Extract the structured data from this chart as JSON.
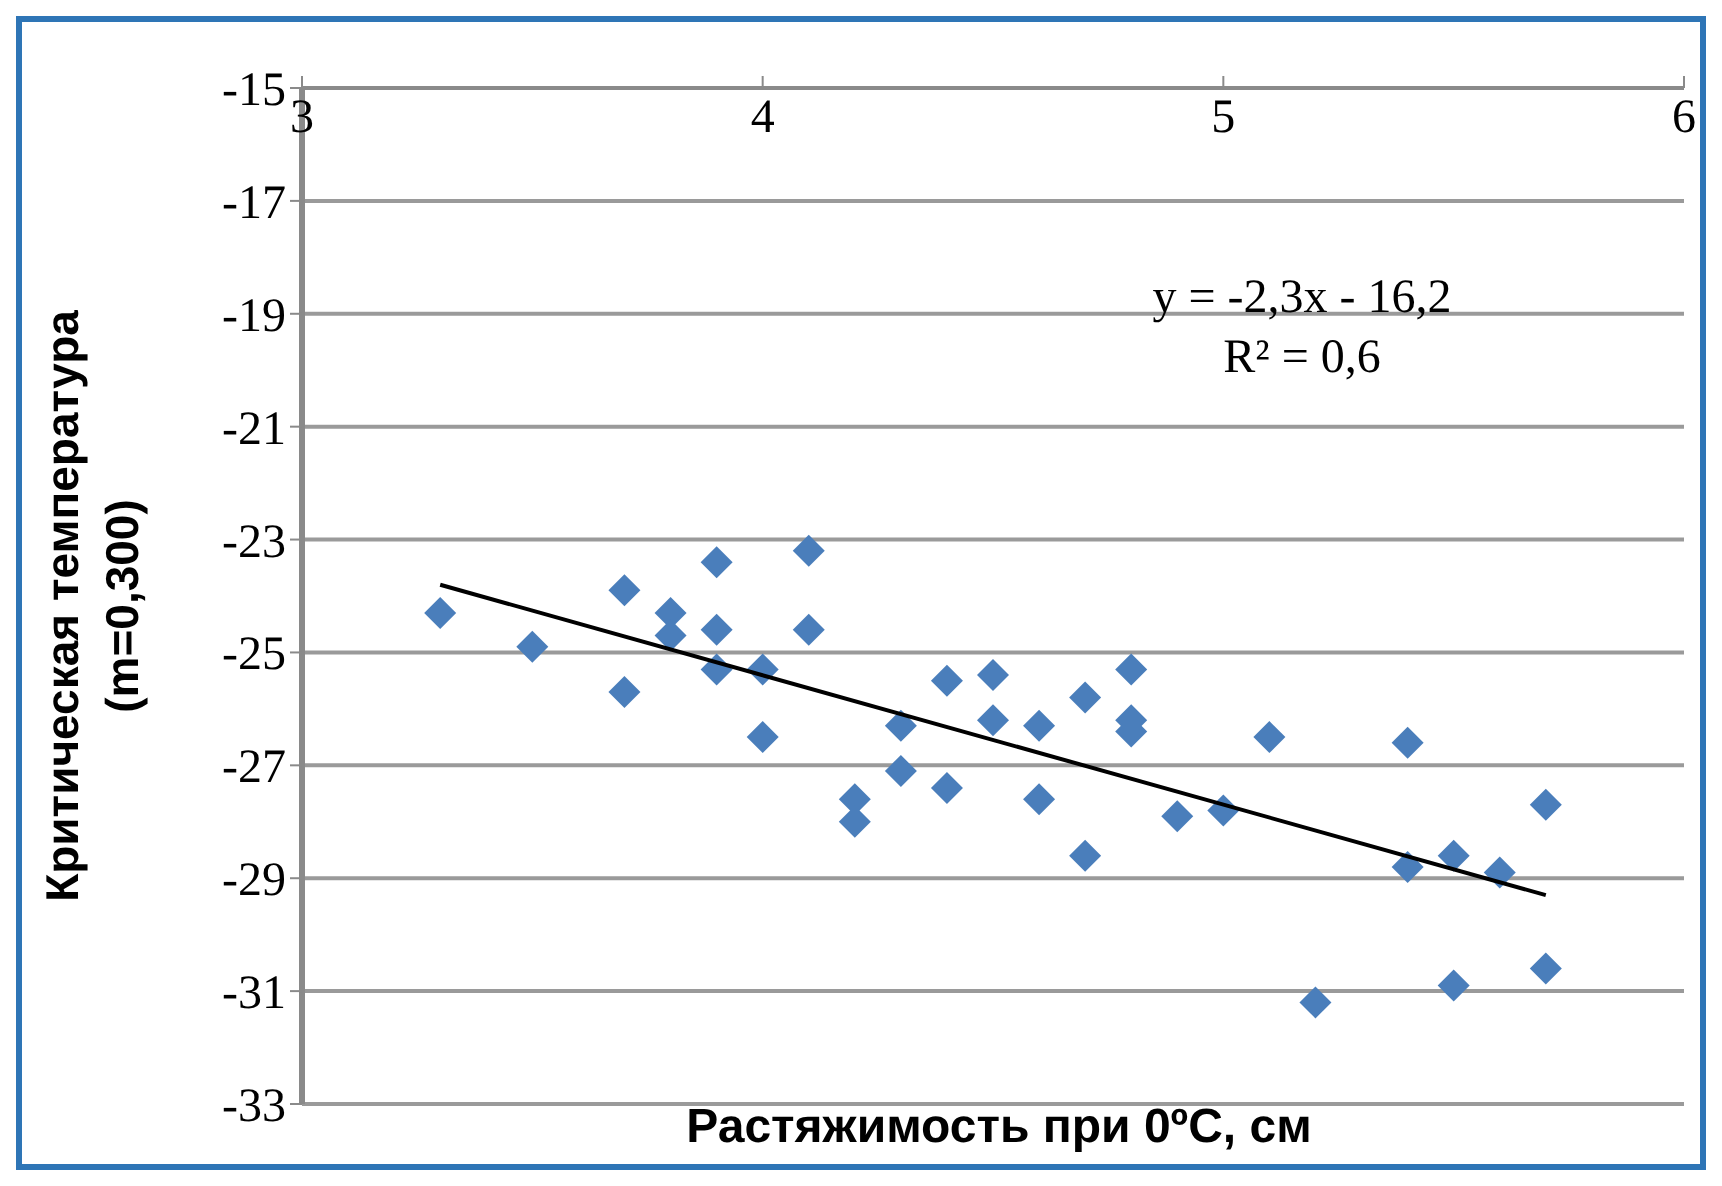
{
  "chart_data": {
    "type": "scatter",
    "xlabel": "Растяжимость при 0ºС, см",
    "ylabel": "Критическая температура\n(m=0,300)",
    "xlim": [
      3,
      6
    ],
    "xticks": [
      3,
      4,
      5,
      6
    ],
    "ylim": [
      -33,
      -15
    ],
    "yticks": [
      -33,
      -31,
      -29,
      -27,
      -25,
      -23,
      -21,
      -19,
      -17,
      -15
    ],
    "grid": "y",
    "legend": false,
    "marker": "diamond",
    "annotations": [
      "y = -2,3x - 16,2",
      "R² = 0,6"
    ],
    "series": [
      {
        "color": "#4a7ebb",
        "x": [
          3.3,
          3.5,
          3.7,
          3.7,
          3.8,
          3.8,
          3.9,
          3.9,
          3.9,
          4.0,
          4.0,
          4.1,
          4.1,
          4.2,
          4.2,
          4.3,
          4.3,
          4.4,
          4.4,
          4.5,
          4.5,
          4.6,
          4.6,
          4.7,
          4.7,
          4.8,
          4.8,
          4.8,
          4.9,
          5.0,
          5.1,
          5.2,
          5.4,
          5.4,
          5.5,
          5.5,
          5.6,
          5.7,
          5.7
        ],
        "values": [
          -24.3,
          -24.9,
          -23.9,
          -25.7,
          -24.3,
          -24.7,
          -23.4,
          -24.6,
          -25.3,
          -25.3,
          -26.5,
          -23.2,
          -24.6,
          -27.6,
          -28.0,
          -26.3,
          -27.1,
          -25.5,
          -27.4,
          -25.4,
          -26.2,
          -26.3,
          -27.6,
          -25.8,
          -28.6,
          -25.3,
          -26.2,
          -26.4,
          -27.9,
          -27.8,
          -26.5,
          -31.2,
          -26.6,
          -28.8,
          -28.6,
          -30.9,
          -28.9,
          -27.7,
          -30.6
        ]
      },
      {
        "type": "line",
        "color": "#000000",
        "marker": "none",
        "x": [
          3.3,
          5.7
        ],
        "values": [
          -23.8,
          -29.3
        ]
      }
    ]
  }
}
